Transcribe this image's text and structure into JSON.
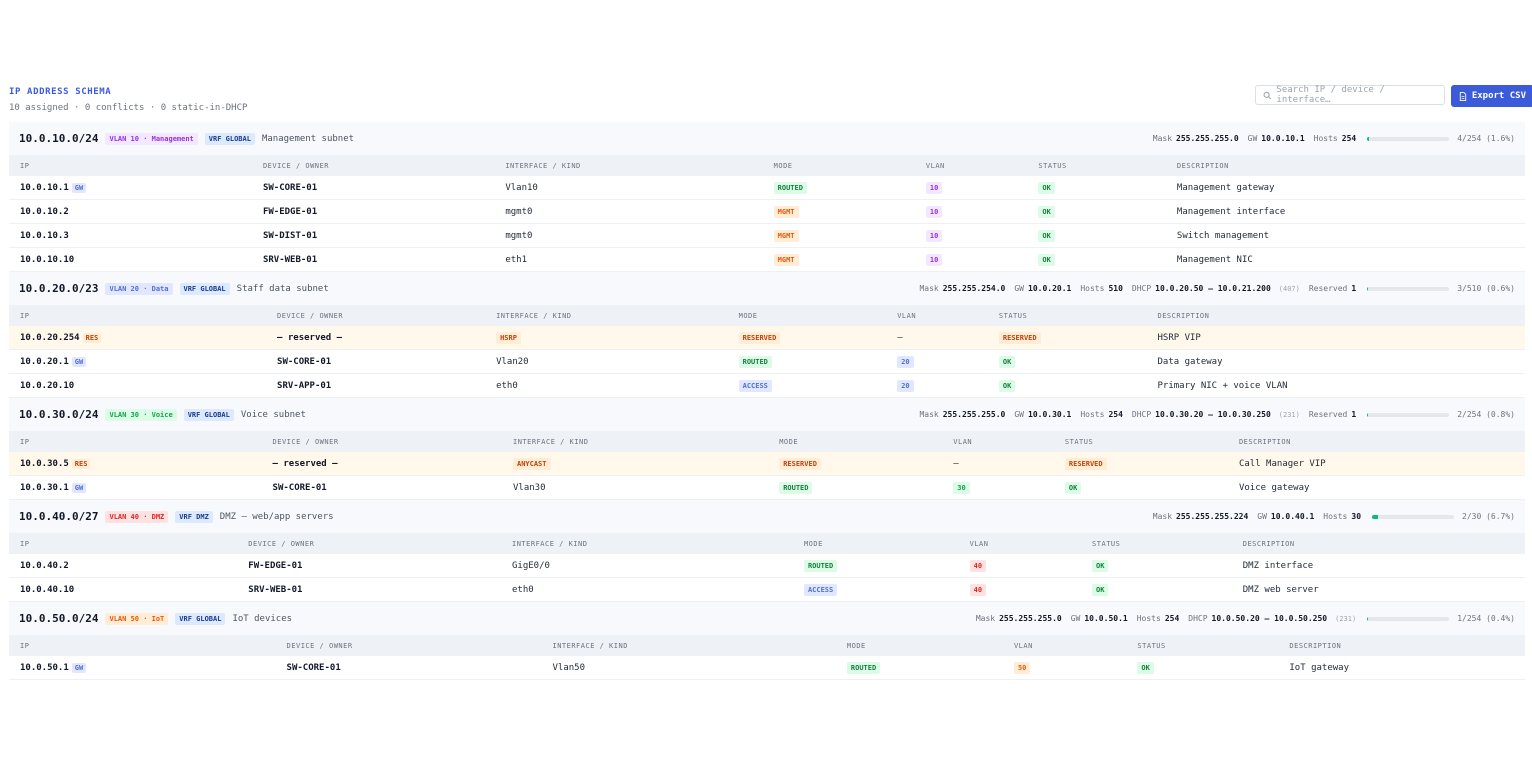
{
  "header": {
    "title": "IP ADDRESS SCHEMA",
    "summary": "10 assigned · 0 conflicts · 0 static-in-DHCP",
    "search_placeholder": "Search IP / device / interface…",
    "export_label": "Export CSV",
    "search_icon": "search-icon",
    "export_icon": "file-icon"
  },
  "columns": [
    "IP",
    "DEVICE / OWNER",
    "INTERFACE / KIND",
    "MODE",
    "VLAN",
    "STATUS",
    "DESCRIPTION"
  ],
  "colors": {
    "accent": "#3b5bdb",
    "routed": {
      "bg": "#dcfce7",
      "fg": "#15803d"
    },
    "mgmt": {
      "bg": "#ffedd5",
      "fg": "#ea580c"
    },
    "access": {
      "bg": "#e0e7ff",
      "fg": "#4f6fd8"
    },
    "reserved": {
      "bg": "#ffedd5",
      "fg": "#c2410c"
    },
    "ok": {
      "bg": "#dcfce7",
      "fg": "#15803d"
    }
  },
  "subnets": [
    {
      "cidr": "10.0.10.0/24",
      "vlan_chip": "VLAN 10 · Management",
      "vlan_colors": {
        "bg": "#f3e8ff",
        "fg": "#9333ea"
      },
      "vrf": "VRF GLOBAL",
      "desc": "Management subnet",
      "mask_label": "Mask",
      "mask": "255.255.255.0",
      "gw_label": "GW",
      "gw": "10.0.10.1",
      "hosts_label": "Hosts",
      "hosts": "254",
      "usage": "4/254 (1.6%)",
      "usage_fraction": 0.016,
      "rows": [
        {
          "ip": "10.0.10.1",
          "tag": "GW",
          "device": "SW-CORE-01",
          "iface": "Vlan10",
          "mode": "ROUTED",
          "vlan": "10",
          "status": "OK",
          "description": "Management gateway"
        },
        {
          "ip": "10.0.10.2",
          "device": "FW-EDGE-01",
          "iface": "mgmt0",
          "mode": "MGMT",
          "vlan": "10",
          "status": "OK",
          "description": "Management interface"
        },
        {
          "ip": "10.0.10.3",
          "device": "SW-DIST-01",
          "iface": "mgmt0",
          "mode": "MGMT",
          "vlan": "10",
          "status": "OK",
          "description": "Switch management"
        },
        {
          "ip": "10.0.10.10",
          "device": "SRV-WEB-01",
          "iface": "eth1",
          "mode": "MGMT",
          "vlan": "10",
          "status": "OK",
          "description": "Management NIC"
        }
      ]
    },
    {
      "cidr": "10.0.20.0/23",
      "vlan_chip": "VLAN 20 · Data",
      "vlan_colors": {
        "bg": "#e0e7ff",
        "fg": "#4f6fd8"
      },
      "vrf": "VRF GLOBAL",
      "desc": "Staff data subnet",
      "mask_label": "Mask",
      "mask": "255.255.254.0",
      "gw_label": "GW",
      "gw": "10.0.20.1",
      "hosts_label": "Hosts",
      "hosts": "510",
      "dhcp_label": "DHCP",
      "dhcp": "10.0.20.50 – 10.0.21.200",
      "dhcp_pool": "(407)",
      "reserved_label": "Reserved",
      "reserved": "1",
      "usage": "3/510 (0.6%)",
      "usage_fraction": 0.006,
      "rows": [
        {
          "ip": "10.0.20.254",
          "tag": "RES",
          "device": "— reserved —",
          "iface": "HSRP",
          "iface_badge": true,
          "mode": "RESERVED",
          "vlan": "—",
          "status": "RESERVED",
          "description": "HSRP VIP",
          "reserved": true
        },
        {
          "ip": "10.0.20.1",
          "tag": "GW",
          "device": "SW-CORE-01",
          "iface": "Vlan20",
          "mode": "ROUTED",
          "vlan": "20",
          "status": "OK",
          "description": "Data gateway"
        },
        {
          "ip": "10.0.20.10",
          "device": "SRV-APP-01",
          "iface": "eth0",
          "mode": "ACCESS",
          "vlan": "20",
          "status": "OK",
          "description": "Primary NIC + voice VLAN"
        }
      ]
    },
    {
      "cidr": "10.0.30.0/24",
      "vlan_chip": "VLAN 30 · Voice",
      "vlan_colors": {
        "bg": "#dcfce7",
        "fg": "#16a34a"
      },
      "vrf": "VRF GLOBAL",
      "desc": "Voice subnet",
      "mask_label": "Mask",
      "mask": "255.255.255.0",
      "gw_label": "GW",
      "gw": "10.0.30.1",
      "hosts_label": "Hosts",
      "hosts": "254",
      "dhcp_label": "DHCP",
      "dhcp": "10.0.30.20 – 10.0.30.250",
      "dhcp_pool": "(231)",
      "reserved_label": "Reserved",
      "reserved": "1",
      "usage": "2/254 (0.8%)",
      "usage_fraction": 0.008,
      "rows": [
        {
          "ip": "10.0.30.5",
          "tag": "RES",
          "device": "— reserved —",
          "iface": "ANYCAST",
          "iface_badge": true,
          "mode": "RESERVED",
          "vlan": "—",
          "status": "RESERVED",
          "description": "Call Manager VIP",
          "reserved": true
        },
        {
          "ip": "10.0.30.1",
          "tag": "GW",
          "device": "SW-CORE-01",
          "iface": "Vlan30",
          "mode": "ROUTED",
          "vlan": "30",
          "status": "OK",
          "description": "Voice gateway"
        }
      ]
    },
    {
      "cidr": "10.0.40.0/27",
      "vlan_chip": "VLAN 40 · DMZ",
      "vlan_colors": {
        "bg": "#fee2e2",
        "fg": "#dc2626"
      },
      "vrf": "VRF DMZ",
      "desc": "DMZ — web/app servers",
      "mask_label": "Mask",
      "mask": "255.255.255.224",
      "gw_label": "GW",
      "gw": "10.0.40.1",
      "hosts_label": "Hosts",
      "hosts": "30",
      "usage": "2/30 (6.7%)",
      "usage_fraction": 0.067,
      "rows": [
        {
          "ip": "10.0.40.2",
          "device": "FW-EDGE-01",
          "iface": "GigE0/0",
          "mode": "ROUTED",
          "vlan": "40",
          "status": "OK",
          "description": "DMZ interface"
        },
        {
          "ip": "10.0.40.10",
          "device": "SRV-WEB-01",
          "iface": "eth0",
          "mode": "ACCESS",
          "vlan": "40",
          "status": "OK",
          "description": "DMZ web server"
        }
      ]
    },
    {
      "cidr": "10.0.50.0/24",
      "vlan_chip": "VLAN 50 · IoT",
      "vlan_colors": {
        "bg": "#ffedd5",
        "fg": "#ea580c"
      },
      "vrf": "VRF GLOBAL",
      "desc": "IoT devices",
      "mask_label": "Mask",
      "mask": "255.255.255.0",
      "gw_label": "GW",
      "gw": "10.0.50.1",
      "hosts_label": "Hosts",
      "hosts": "254",
      "dhcp_label": "DHCP",
      "dhcp": "10.0.50.20 – 10.0.50.250",
      "dhcp_pool": "(231)",
      "usage": "1/254 (0.4%)",
      "usage_fraction": 0.004,
      "rows": [
        {
          "ip": "10.0.50.1",
          "tag": "GW",
          "device": "SW-CORE-01",
          "iface": "Vlan50",
          "mode": "ROUTED",
          "vlan": "50",
          "status": "OK",
          "description": "IoT gateway"
        }
      ]
    }
  ]
}
